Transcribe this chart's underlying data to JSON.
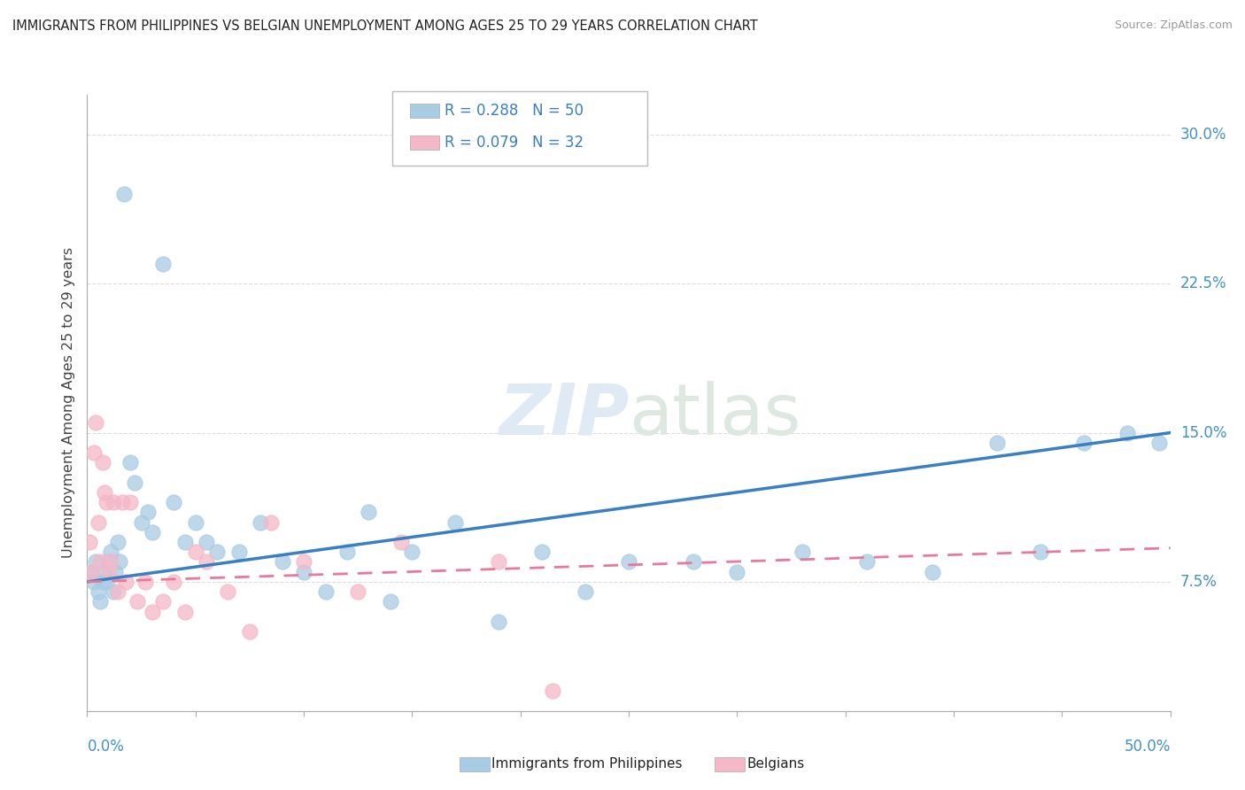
{
  "title": "IMMIGRANTS FROM PHILIPPINES VS BELGIAN UNEMPLOYMENT AMONG AGES 25 TO 29 YEARS CORRELATION CHART",
  "source": "Source: ZipAtlas.com",
  "ylabel": "Unemployment Among Ages 25 to 29 years",
  "ytick_values": [
    7.5,
    15.0,
    22.5,
    30.0
  ],
  "xlim": [
    0,
    50
  ],
  "ylim": [
    1,
    32
  ],
  "legend_r1": "R = 0.288",
  "legend_n1": "N = 50",
  "legend_r2": "R = 0.079",
  "legend_n2": "N = 32",
  "blue_color": "#a8cce4",
  "pink_color": "#f4b8c8",
  "blue_line_color": "#3a7fc1",
  "pink_line_color": "#e8799a",
  "philippines_x": [
    0.2,
    0.3,
    0.4,
    0.5,
    0.6,
    0.7,
    0.8,
    0.9,
    1.0,
    1.1,
    1.2,
    1.3,
    1.4,
    1.5,
    1.7,
    2.0,
    2.2,
    2.5,
    2.8,
    3.0,
    3.5,
    4.0,
    4.5,
    5.0,
    5.5,
    6.0,
    7.0,
    8.0,
    9.0,
    10.0,
    11.0,
    12.0,
    13.0,
    14.0,
    15.0,
    17.0,
    19.0,
    21.0,
    23.0,
    25.0,
    28.0,
    30.0,
    33.0,
    36.0,
    39.0,
    42.0,
    44.0,
    46.0,
    48.0,
    49.5
  ],
  "philippines_y": [
    8.0,
    7.5,
    8.5,
    7.0,
    6.5,
    7.5,
    8.0,
    7.5,
    8.5,
    9.0,
    7.0,
    8.0,
    9.5,
    8.5,
    27.0,
    13.5,
    12.5,
    10.5,
    11.0,
    10.0,
    23.5,
    11.5,
    9.5,
    10.5,
    9.5,
    9.0,
    9.0,
    10.5,
    8.5,
    8.0,
    7.0,
    9.0,
    11.0,
    6.5,
    9.0,
    10.5,
    5.5,
    9.0,
    7.0,
    8.5,
    8.5,
    8.0,
    9.0,
    8.5,
    8.0,
    14.5,
    9.0,
    14.5,
    15.0,
    14.5
  ],
  "belgians_x": [
    0.1,
    0.2,
    0.3,
    0.4,
    0.5,
    0.6,
    0.7,
    0.8,
    0.9,
    1.0,
    1.1,
    1.2,
    1.4,
    1.6,
    1.8,
    2.0,
    2.3,
    2.7,
    3.0,
    3.5,
    4.0,
    4.5,
    5.0,
    5.5,
    6.5,
    7.5,
    8.5,
    10.0,
    12.5,
    14.5,
    19.0,
    21.5
  ],
  "belgians_y": [
    9.5,
    8.0,
    14.0,
    15.5,
    10.5,
    8.5,
    13.5,
    12.0,
    11.5,
    8.0,
    8.5,
    11.5,
    7.0,
    11.5,
    7.5,
    11.5,
    6.5,
    7.5,
    6.0,
    6.5,
    7.5,
    6.0,
    9.0,
    8.5,
    7.0,
    5.0,
    10.5,
    8.5,
    7.0,
    9.5,
    8.5,
    2.0
  ],
  "blue_trend_start_y": 7.5,
  "blue_trend_end_y": 15.0,
  "pink_trend_start_y": 7.5,
  "pink_trend_end_y": 9.2
}
